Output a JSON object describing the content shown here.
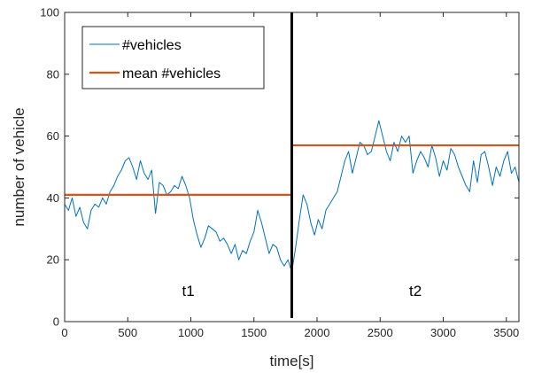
{
  "chart_data": {
    "type": "line",
    "xlabel": "time[s]",
    "ylabel": "number of vehicle",
    "xlim": [
      0,
      3600
    ],
    "ylim": [
      0,
      100
    ],
    "xticks": [
      0,
      500,
      1000,
      1500,
      2000,
      2500,
      3000,
      3500
    ],
    "yticks": [
      0,
      20,
      40,
      60,
      80,
      100
    ],
    "grid": false,
    "legend_position": "top-left",
    "divider_x": 1800,
    "annotations": [
      {
        "text": "t1",
        "x": 980,
        "y": 10
      },
      {
        "text": "t2",
        "x": 2780,
        "y": 10
      }
    ],
    "series": [
      {
        "name": "#vehicles",
        "color": "#0072BD",
        "x": [
          0,
          30,
          60,
          90,
          120,
          150,
          180,
          210,
          240,
          270,
          300,
          330,
          360,
          390,
          420,
          450,
          480,
          510,
          540,
          570,
          600,
          630,
          660,
          690,
          720,
          750,
          780,
          810,
          840,
          870,
          900,
          930,
          960,
          990,
          1020,
          1050,
          1080,
          1110,
          1140,
          1170,
          1200,
          1230,
          1260,
          1290,
          1320,
          1350,
          1380,
          1410,
          1440,
          1470,
          1500,
          1530,
          1560,
          1590,
          1620,
          1650,
          1680,
          1710,
          1740,
          1770,
          1800,
          1830,
          1860,
          1890,
          1920,
          1950,
          1980,
          2010,
          2040,
          2070,
          2100,
          2130,
          2160,
          2190,
          2220,
          2250,
          2280,
          2310,
          2340,
          2370,
          2400,
          2430,
          2460,
          2490,
          2520,
          2550,
          2580,
          2610,
          2640,
          2670,
          2700,
          2730,
          2760,
          2790,
          2820,
          2850,
          2880,
          2910,
          2940,
          2970,
          3000,
          3030,
          3060,
          3090,
          3120,
          3150,
          3180,
          3210,
          3240,
          3270,
          3300,
          3330,
          3360,
          3390,
          3420,
          3450,
          3480,
          3510,
          3540,
          3570,
          3600
        ],
        "y": [
          38,
          36,
          40,
          34,
          37,
          32,
          30,
          36,
          38,
          37,
          40,
          38,
          42,
          44,
          47,
          49,
          52,
          53,
          50,
          46,
          52,
          48,
          46,
          49,
          35,
          45,
          44,
          41,
          42,
          44,
          43,
          47,
          44,
          40,
          33,
          28,
          24,
          27,
          31,
          30,
          29,
          26,
          27,
          25,
          22,
          25,
          20,
          23,
          22,
          26,
          29,
          36,
          32,
          27,
          22,
          25,
          24,
          20,
          18,
          20,
          16,
          24,
          33,
          41,
          38,
          32,
          28,
          33,
          30,
          36,
          38,
          40,
          42,
          47,
          52,
          55,
          48,
          53,
          58,
          57,
          54,
          55,
          60,
          65,
          60,
          55,
          52,
          58,
          55,
          60,
          58,
          60,
          48,
          52,
          55,
          53,
          50,
          57,
          53,
          47,
          52,
          49,
          56,
          54,
          50,
          47,
          44,
          42,
          52,
          45,
          54,
          55,
          50,
          44,
          50,
          47,
          52,
          55,
          48,
          50,
          45
        ]
      },
      {
        "name": "mean #vehicles",
        "color": "#D95319",
        "segments": [
          {
            "x": [
              0,
              1800
            ],
            "y": [
              41,
              41
            ]
          },
          {
            "x": [
              1800,
              3600
            ],
            "y": [
              57,
              57
            ]
          }
        ]
      }
    ]
  }
}
